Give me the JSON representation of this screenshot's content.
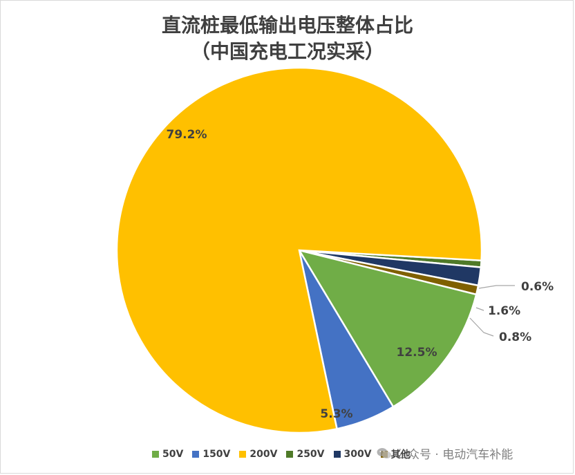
{
  "chart_data": {
    "type": "pie",
    "title_line1": "直流桩最低输出电压整体占比",
    "title_line2": "（中国充电工况实采）",
    "start": "0.6%",
    "slices": [
      {
        "name": "250V",
        "value": 0.6,
        "label": "0.6%",
        "color": "#4f7a28"
      },
      {
        "name": "300V",
        "value": 1.6,
        "label": "1.6%",
        "color": "#203864"
      },
      {
        "name": "其他",
        "value": 0.8,
        "label": "0.8%",
        "color": "#7f6000"
      },
      {
        "name": "50V",
        "value": 12.5,
        "label": "12.5%",
        "color": "#70ad47"
      },
      {
        "name": "150V",
        "value": 5.3,
        "label": "5.3%",
        "color": "#4472c4"
      },
      {
        "name": "200V",
        "value": 79.2,
        "label": "79.2%",
        "color": "#ffc000"
      }
    ],
    "legend": [
      {
        "name": "50V",
        "color": "#70ad47"
      },
      {
        "name": "150V",
        "color": "#4472c4"
      },
      {
        "name": "200V",
        "color": "#ffc000"
      },
      {
        "name": "250V",
        "color": "#4f7a28"
      },
      {
        "name": "300V",
        "color": "#203864"
      },
      {
        "name": "其他",
        "color": "#7f6000"
      }
    ]
  },
  "watermark": {
    "text": "公众号 · 电动汽车补能",
    "icon": "wechat-icon"
  }
}
